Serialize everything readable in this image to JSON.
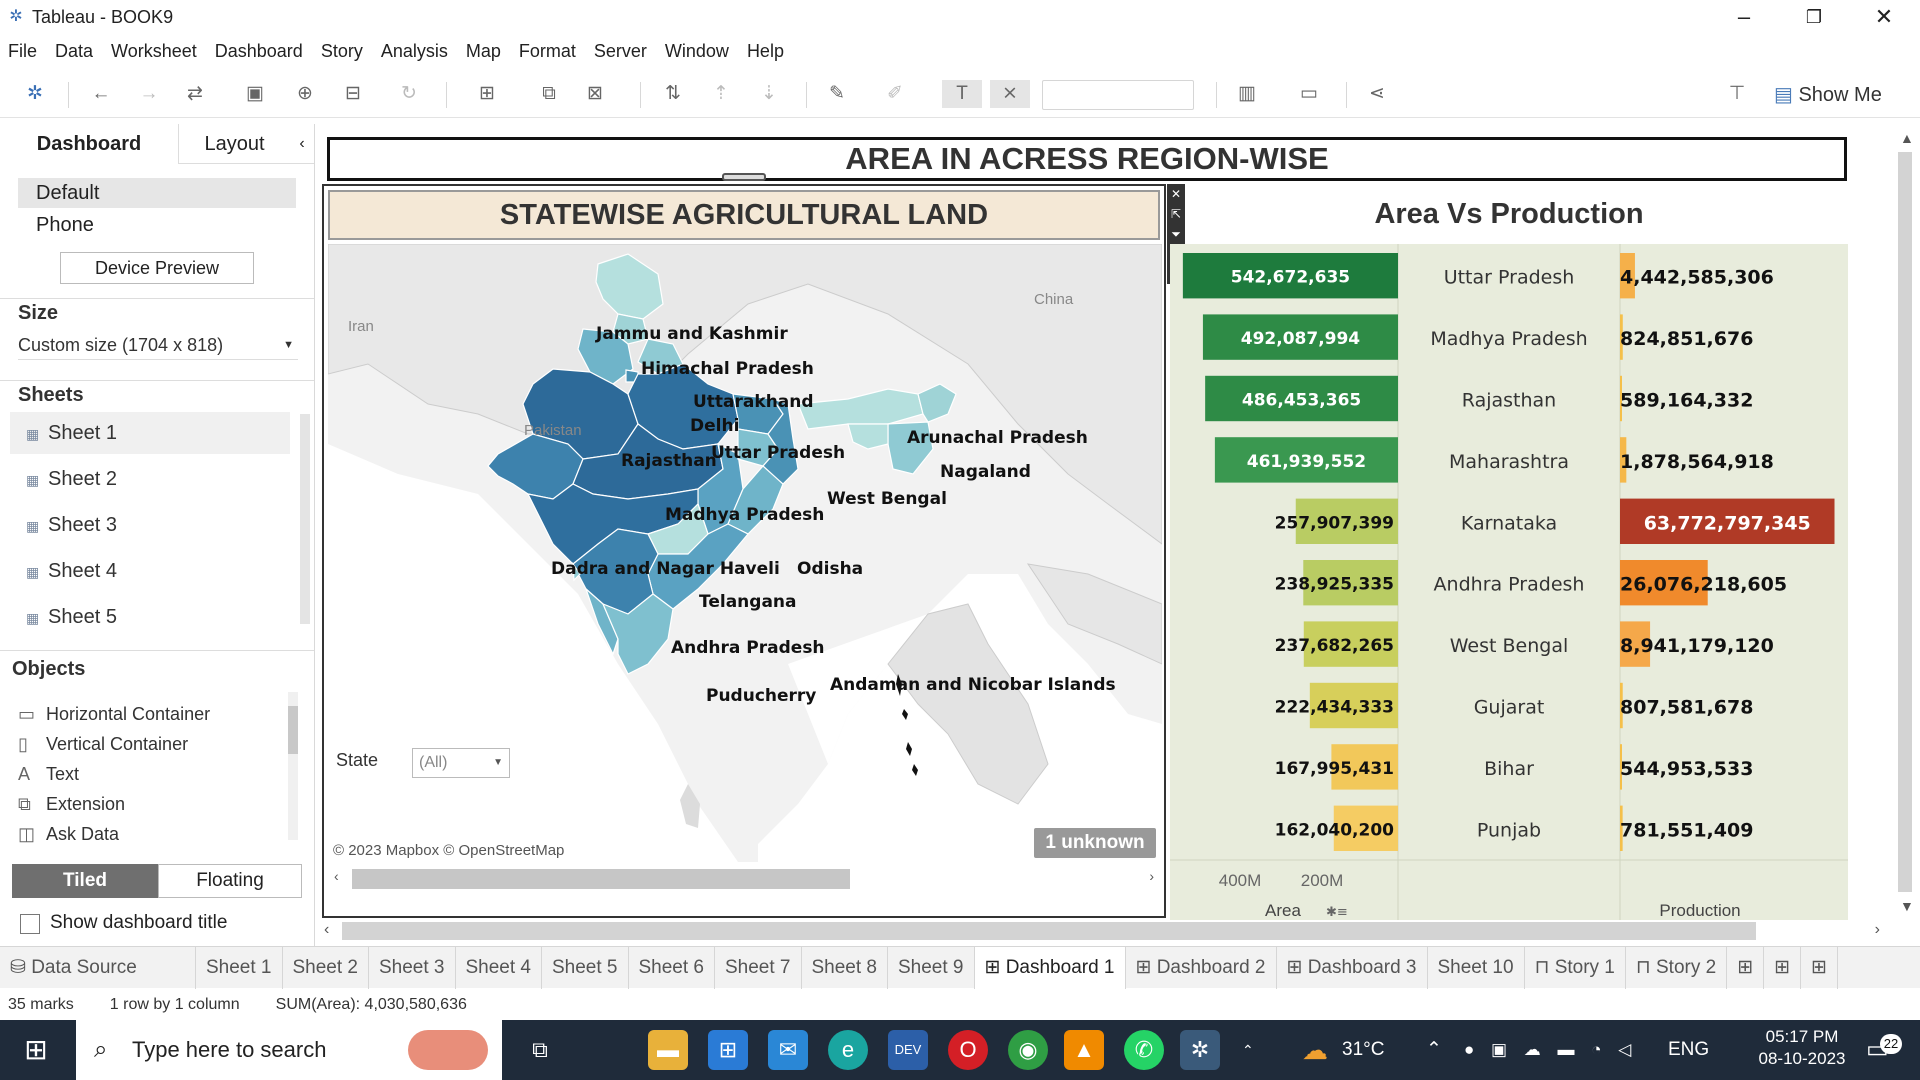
{
  "window": {
    "title": "Tableau - BOOK9"
  },
  "menu": [
    "File",
    "Data",
    "Worksheet",
    "Dashboard",
    "Story",
    "Analysis",
    "Map",
    "Format",
    "Server",
    "Window",
    "Help"
  ],
  "toolbar": {
    "show_me": "Show Me"
  },
  "left_panel": {
    "tabs": [
      "Dashboard",
      "Layout"
    ],
    "devices": [
      "Default",
      "Phone"
    ],
    "device_preview": "Device Preview",
    "size_title": "Size",
    "size_value": "Custom size (1704 x 818)",
    "sheets_title": "Sheets",
    "sheets": [
      "Sheet 1",
      "Sheet 2",
      "Sheet 3",
      "Sheet 4",
      "Sheet 5"
    ],
    "objects_title": "Objects",
    "objects": [
      "Horizontal Container",
      "Vertical Container",
      "Text",
      "Extension",
      "Ask Data"
    ],
    "tiled": "Tiled",
    "floating": "Floating",
    "show_title": "Show dashboard title"
  },
  "dashboard": {
    "main_title": "AREA IN ACRESS REGION-WISE",
    "map": {
      "title": "STATEWISE AGRICULTURAL LAND",
      "countries": [
        "Iran",
        "Pakistan",
        "China"
      ],
      "states": [
        "Jammu and Kashmir",
        "Himachal Pradesh",
        "Uttarakhand",
        "Delhi",
        "Rajasthan",
        "Uttar Pradesh",
        "Arunachal Pradesh",
        "Nagaland",
        "West Bengal",
        "Madhya Pradesh",
        "Dadra and Nagar Haveli",
        "Odisha",
        "Telangana",
        "Andhra Pradesh",
        "Andaman and Nicobar Islands",
        "Puducherry"
      ],
      "filter_label": "State",
      "filter_value": "(All)",
      "attribution": "© 2023 Mapbox © OpenStreetMap",
      "unknown": "1 unknown"
    }
  },
  "chart_data": {
    "type": "bar",
    "title": "Area Vs Production",
    "categories": [
      "Uttar Pradesh",
      "Madhya Pradesh",
      "Rajasthan",
      "Maharashtra",
      "Karnataka",
      "Andhra Pradesh",
      "West Bengal",
      "Gujarat",
      "Bihar",
      "Punjab"
    ],
    "series": [
      {
        "name": "Area",
        "values": [
          542672635,
          492087994,
          486453365,
          461939552,
          257907399,
          238925335,
          237682265,
          222434333,
          167995431,
          162040200
        ],
        "labels": [
          "542,672,635",
          "492,087,994",
          "486,453,365",
          "461,939,552",
          "257,907,399",
          "238,925,335",
          "237,682,265",
          "222,434,333",
          "167,995,431",
          "162,040,200"
        ],
        "colors": [
          "#1e7b3d",
          "#2e8b46",
          "#2e8b46",
          "#3a9850",
          "#b9cc63",
          "#b9cc63",
          "#c8cf5e",
          "#d7cf5a",
          "#f2c85a",
          "#f5cc63"
        ]
      },
      {
        "name": "Production",
        "values": [
          4442585306,
          824851676,
          589164332,
          1878564918,
          63772797345,
          26076218605,
          8941179120,
          807581678,
          544953533,
          781551409
        ],
        "labels": [
          "4,442,585,306",
          "824,851,676",
          "589,164,332",
          "1,878,564,918",
          "63,772,797,345",
          "26,076,218,605",
          "8,941,179,120",
          "807,581,678",
          "544,953,533",
          "781,551,409"
        ],
        "colors": [
          "#f5b04a",
          "#f5c04a",
          "#f5c04a",
          "#f5b84a",
          "#b03a26",
          "#f08a2c",
          "#f5a84a",
          "#f5c04a",
          "#f5c04a",
          "#f5c04a"
        ]
      }
    ],
    "area_axis": {
      "ticks": [
        "400M",
        "200M"
      ],
      "label": "Area"
    },
    "production_axis": {
      "label": "Production"
    }
  },
  "tabs": [
    "Data Source",
    "Sheet 1",
    "Sheet 2",
    "Sheet 3",
    "Sheet 4",
    "Sheet 5",
    "Sheet 6",
    "Sheet 7",
    "Sheet 8",
    "Sheet 9",
    "Dashboard 1",
    "Dashboard 2",
    "Dashboard 3",
    "Sheet 10",
    "Story 1",
    "Story 2"
  ],
  "active_tab": "Dashboard 1",
  "status": {
    "marks": "35 marks",
    "rows": "1 row by 1 column",
    "sum": "SUM(Area): 4,030,580,636"
  },
  "taskbar": {
    "search_placeholder": "Type here to search",
    "weather": "31°C",
    "lang": "ENG",
    "time": "05:17 PM",
    "date": "08-10-2023",
    "notifications": "22"
  }
}
